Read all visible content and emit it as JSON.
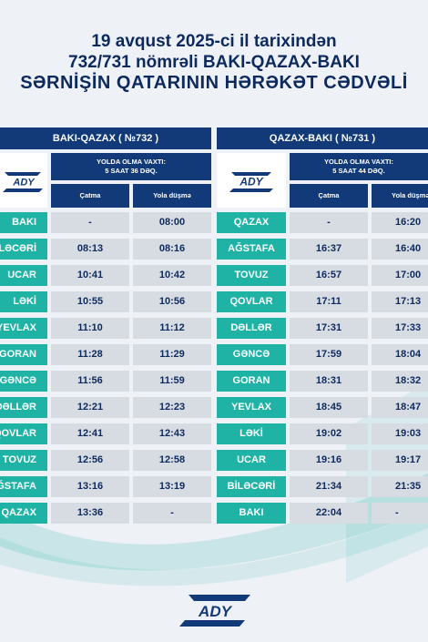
{
  "title": {
    "line1": "19 avqust 2025-ci il tarixindən",
    "line2": "732/731 nömrəli BAKI-QAZAX-BAKI",
    "line3": "SƏRNİŞİN QATARININ HƏRƏKƏT CƏDVƏLİ"
  },
  "logo_text": "ADY",
  "left": {
    "header": "BAKI-QAZAX ( №732 )",
    "travel_label": "YOLDA OLMA VAXTI:",
    "travel_value": "5 SAAT 36 DƏQ.",
    "col_arrival": "Çatma",
    "col_departure": "Yola düşmə",
    "rows": [
      {
        "station": "BAKI",
        "arr": "-",
        "dep": "08:00"
      },
      {
        "station": "BİLƏCƏRİ",
        "arr": "08:13",
        "dep": "08:16"
      },
      {
        "station": "UCAR",
        "arr": "10:41",
        "dep": "10:42"
      },
      {
        "station": "LƏKİ",
        "arr": "10:55",
        "dep": "10:56"
      },
      {
        "station": "YEVLAX",
        "arr": "11:10",
        "dep": "11:12"
      },
      {
        "station": "GORAN",
        "arr": "11:28",
        "dep": "11:29"
      },
      {
        "station": "GƏNCƏ",
        "arr": "11:56",
        "dep": "11:59"
      },
      {
        "station": "DƏLLƏR",
        "arr": "12:21",
        "dep": "12:23"
      },
      {
        "station": "QOVLAR",
        "arr": "12:41",
        "dep": "12:43"
      },
      {
        "station": "TOVUZ",
        "arr": "12:56",
        "dep": "12:58"
      },
      {
        "station": "AĞSTAFA",
        "arr": "13:16",
        "dep": "13:19"
      },
      {
        "station": "QAZAX",
        "arr": "13:36",
        "dep": "-"
      }
    ]
  },
  "right": {
    "header": "QAZAX-BAKI ( №731 )",
    "travel_label": "YOLDA OLMA VAXTI:",
    "travel_value": "5 SAAT 44 DƏQ.",
    "col_arrival": "Çatma",
    "col_departure": "Yola düşmə",
    "rows": [
      {
        "station": "QAZAX",
        "arr": "-",
        "dep": "16:20"
      },
      {
        "station": "AĞSTAFA",
        "arr": "16:37",
        "dep": "16:40"
      },
      {
        "station": "TOVUZ",
        "arr": "16:57",
        "dep": "17:00"
      },
      {
        "station": "QOVLAR",
        "arr": "17:11",
        "dep": "17:13"
      },
      {
        "station": "DƏLLƏR",
        "arr": "17:31",
        "dep": "17:33"
      },
      {
        "station": "GƏNCƏ",
        "arr": "17:59",
        "dep": "18:04"
      },
      {
        "station": "GORAN",
        "arr": "18:31",
        "dep": "18:32"
      },
      {
        "station": "YEVLAX",
        "arr": "18:45",
        "dep": "18:47"
      },
      {
        "station": "LƏKİ",
        "arr": "19:02",
        "dep": "19:03"
      },
      {
        "station": "UCAR",
        "arr": "19:16",
        "dep": "19:17"
      },
      {
        "station": "BİLƏCƏRİ",
        "arr": "21:34",
        "dep": "21:35"
      },
      {
        "station": "BAKI",
        "arr": "22:04",
        "dep": "-"
      }
    ]
  },
  "colors": {
    "navy": "#123a78",
    "teal": "#1fb3a6",
    "cell": "#d7dbe2",
    "background": "#eef1f6"
  }
}
